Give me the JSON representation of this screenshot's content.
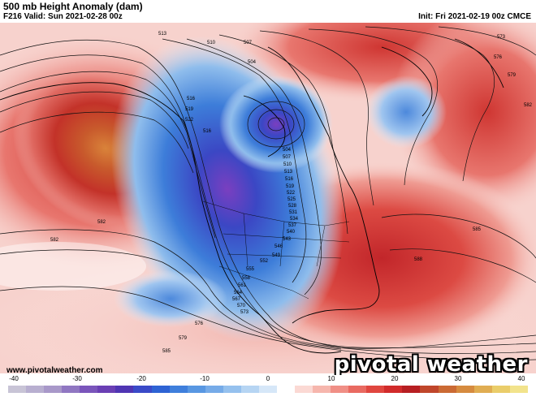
{
  "header": {
    "title": "500 mb Height Anomaly (dam)",
    "valid": "F216 Valid: Sun 2021-02-28 00z",
    "init": "Init: Fri 2021-02-19 00z CMCE"
  },
  "footer": {
    "website": "www.pivotalweather.com",
    "brand": "pivotal weather"
  },
  "contour_labels": [
    "513",
    "510",
    "507",
    "504",
    "516",
    "519",
    "522",
    "516",
    "504",
    "507",
    "510",
    "513",
    "516",
    "519",
    "522",
    "525",
    "528",
    "531",
    "534",
    "537",
    "540",
    "543",
    "546",
    "549",
    "552",
    "555",
    "558",
    "561",
    "564",
    "567",
    "570",
    "573",
    "576",
    "579",
    "582",
    "585",
    "585",
    "588",
    "582",
    "579",
    "576",
    "573",
    "582"
  ],
  "colorbar": {
    "ticks": [
      "-40",
      "-30",
      "-20",
      "-10",
      "0",
      "10",
      "20",
      "30",
      "40"
    ],
    "colors": [
      "#c8c4d6",
      "#b8afd0",
      "#a898c9",
      "#9077c2",
      "#7a55bb",
      "#6a3fb4",
      "#4f35b3",
      "#3a4ac8",
      "#2e63d4",
      "#3f7fdc",
      "#5897e2",
      "#76abe8",
      "#95c1ee",
      "#b6d5f3",
      "#d6e7f8",
      "#ffffff",
      "#fbd9d4",
      "#f6b6ad",
      "#f08f86",
      "#e96a61",
      "#e0463f",
      "#d12b2b",
      "#b71f22",
      "#c0462b",
      "#cb6a34",
      "#d68b3f",
      "#e0ad52",
      "#eacd6a",
      "#f2e38c"
    ]
  }
}
